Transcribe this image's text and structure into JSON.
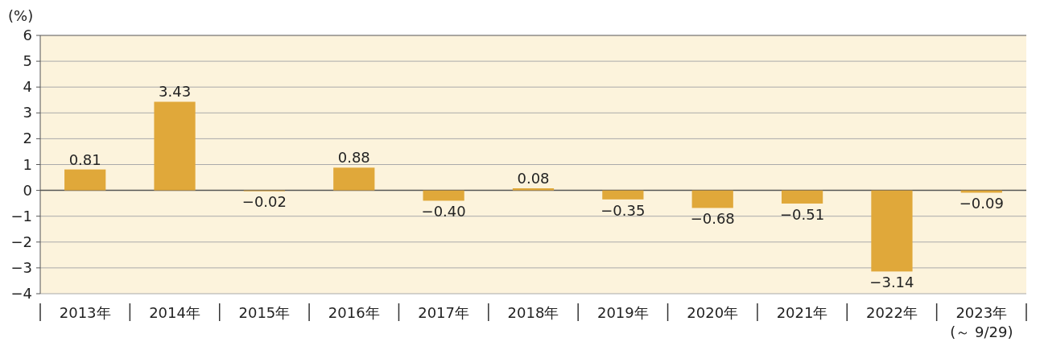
{
  "chart_data": {
    "type": "bar",
    "ylabel": "(%)",
    "categories": [
      "2013年",
      "2014年",
      "2015年",
      "2016年",
      "2017年",
      "2018年",
      "2019年",
      "2020年",
      "2021年",
      "2022年",
      "2023年\n(～ 9/29)"
    ],
    "values": [
      0.81,
      3.43,
      -0.02,
      0.88,
      -0.4,
      0.08,
      -0.35,
      -0.68,
      -0.51,
      -3.14,
      -0.09
    ],
    "value_labels": [
      "0.81",
      "3.43",
      "−0.02",
      "0.88",
      "−0.40",
      "0.08",
      "−0.35",
      "−0.68",
      "−0.51",
      "−3.14",
      "−0.09"
    ],
    "color": "#e0a83a",
    "ylim": [
      -4,
      6
    ],
    "yticks": [
      {
        "value": -4,
        "label": "−4"
      },
      {
        "value": -3,
        "label": "−3"
      },
      {
        "value": -2,
        "label": "−2"
      },
      {
        "value": -1,
        "label": "−1"
      },
      0,
      1,
      2,
      3,
      4,
      5,
      6
    ],
    "grid": "y"
  }
}
